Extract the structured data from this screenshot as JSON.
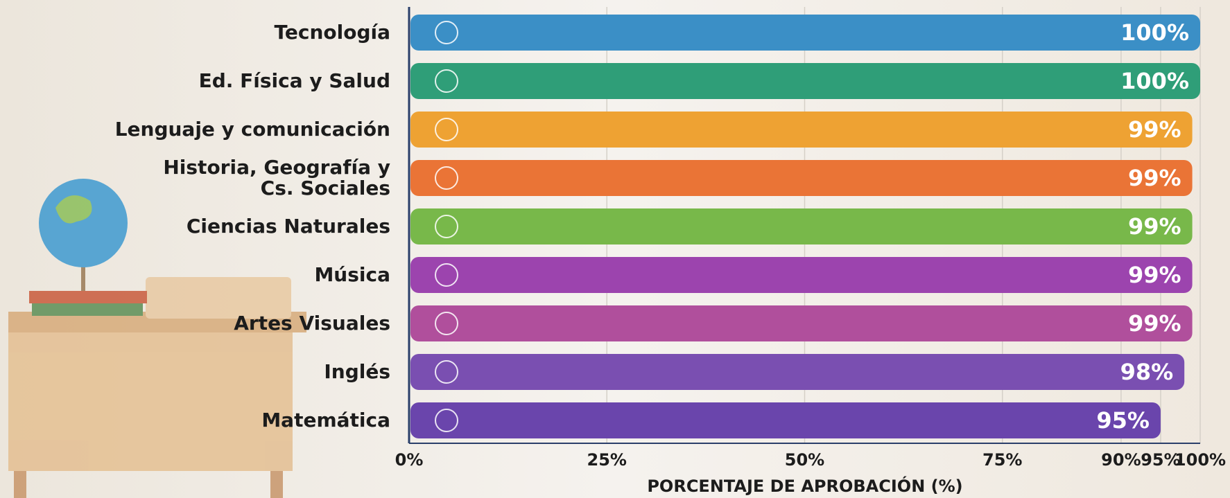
{
  "chart_data": {
    "type": "hbar",
    "categories": [
      "Tecnología",
      "Ed. Física y Salud",
      "Lenguaje y comunicación",
      "Historia, Geografía y\nCs. Sociales",
      "Ciencias Naturales",
      "Música",
      "Artes Visuales",
      "Inglés",
      "Matemática"
    ],
    "values": [
      100,
      100,
      99,
      99,
      99,
      99,
      99,
      98,
      95
    ],
    "value_labels": [
      "100%",
      "100%",
      "99%",
      "99%",
      "99%",
      "99%",
      "99%",
      "98%",
      "95%"
    ],
    "colors": [
      "#3b8fc6",
      "#2f9e78",
      "#eea233",
      "#ea7436",
      "#78b84a",
      "#9c44ae",
      "#b04f9c",
      "#7a4fb1",
      "#6a45ac"
    ],
    "xlabel": "PORCENTAJE DE APROBACIÓN (%)",
    "xlim": [
      0,
      100
    ],
    "xticks": [
      {
        "value": 0,
        "label": "0%"
      },
      {
        "value": 25,
        "label": "25%"
      },
      {
        "value": 50,
        "label": "50%"
      },
      {
        "value": 75,
        "label": "75%"
      },
      {
        "value": 90,
        "label": "90%"
      },
      {
        "value": 95,
        "label": "95%"
      },
      {
        "value": 100,
        "label": "100%"
      }
    ],
    "grid": true
  }
}
